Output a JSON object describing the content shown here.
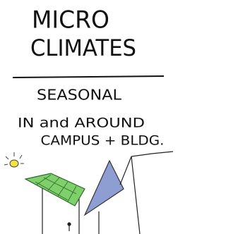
{
  "title": {
    "line1": "MICRO",
    "line2": "CLIMATES"
  },
  "subtitle": "SEASONAL",
  "caption": {
    "line1": "IN and AROUND",
    "line2": "CAMPUS + BLDG."
  }
}
